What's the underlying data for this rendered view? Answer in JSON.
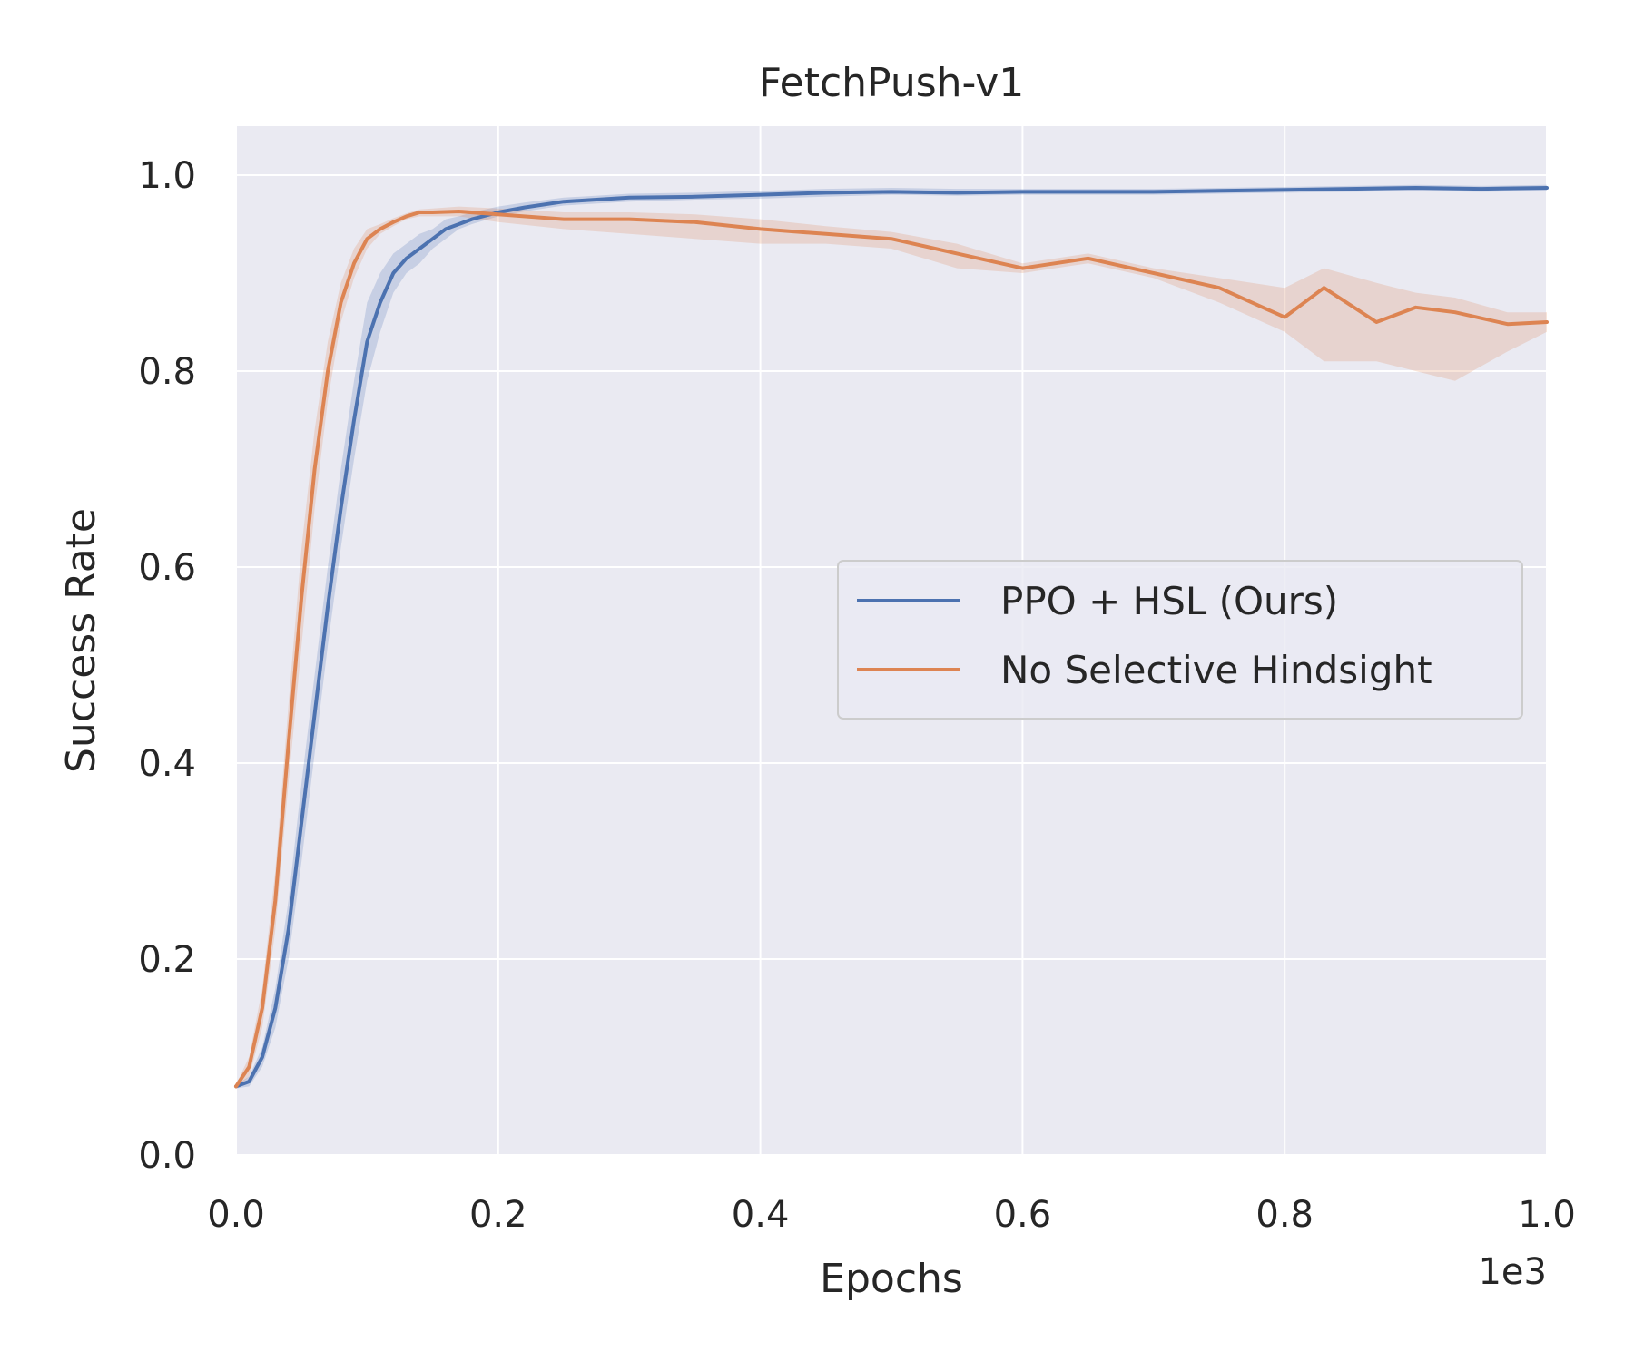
{
  "chart_data": {
    "type": "line",
    "title": "FetchPush-v1",
    "xlabel": "Epochs",
    "ylabel": "Success Rate",
    "x_offset_label": "1e3",
    "xlim": [
      0,
      1.0
    ],
    "ylim": [
      0,
      1.05
    ],
    "xticks": [
      "0.0",
      "0.2",
      "0.4",
      "0.6",
      "0.8",
      "1.0"
    ],
    "yticks": [
      "0.0",
      "0.2",
      "0.4",
      "0.6",
      "0.8",
      "1.0"
    ],
    "grid": true,
    "legend_position": "center-right",
    "background": "#eaeaf2",
    "series": [
      {
        "name": "PPO + HSL (Ours)",
        "color": "#4c72b0",
        "x": [
          0.0,
          0.01,
          0.02,
          0.03,
          0.04,
          0.05,
          0.06,
          0.07,
          0.08,
          0.09,
          0.1,
          0.11,
          0.12,
          0.13,
          0.14,
          0.15,
          0.16,
          0.17,
          0.18,
          0.2,
          0.22,
          0.25,
          0.3,
          0.35,
          0.4,
          0.45,
          0.5,
          0.55,
          0.6,
          0.65,
          0.7,
          0.75,
          0.8,
          0.85,
          0.9,
          0.95,
          1.0
        ],
        "values": [
          0.07,
          0.075,
          0.1,
          0.15,
          0.23,
          0.34,
          0.45,
          0.56,
          0.66,
          0.75,
          0.83,
          0.87,
          0.9,
          0.915,
          0.925,
          0.935,
          0.945,
          0.95,
          0.955,
          0.962,
          0.967,
          0.973,
          0.977,
          0.978,
          0.98,
          0.982,
          0.983,
          0.982,
          0.983,
          0.983,
          0.983,
          0.984,
          0.985,
          0.986,
          0.987,
          0.986,
          0.987
        ],
        "lower": [
          0.068,
          0.07,
          0.09,
          0.13,
          0.2,
          0.3,
          0.41,
          0.52,
          0.62,
          0.71,
          0.79,
          0.84,
          0.88,
          0.9,
          0.91,
          0.925,
          0.935,
          0.945,
          0.95,
          0.958,
          0.963,
          0.969,
          0.973,
          0.975,
          0.976,
          0.978,
          0.98,
          0.979,
          0.98,
          0.98,
          0.98,
          0.981,
          0.982,
          0.983,
          0.984,
          0.983,
          0.984
        ],
        "upper": [
          0.072,
          0.08,
          0.11,
          0.17,
          0.26,
          0.38,
          0.49,
          0.6,
          0.7,
          0.79,
          0.87,
          0.9,
          0.92,
          0.93,
          0.94,
          0.945,
          0.955,
          0.958,
          0.962,
          0.968,
          0.972,
          0.977,
          0.981,
          0.982,
          0.984,
          0.986,
          0.987,
          0.986,
          0.986,
          0.986,
          0.986,
          0.987,
          0.988,
          0.989,
          0.99,
          0.989,
          0.99
        ]
      },
      {
        "name": "No Selective Hindsight",
        "color": "#dd8452",
        "x": [
          0.0,
          0.01,
          0.02,
          0.03,
          0.04,
          0.05,
          0.06,
          0.07,
          0.08,
          0.09,
          0.1,
          0.11,
          0.12,
          0.13,
          0.14,
          0.15,
          0.17,
          0.2,
          0.25,
          0.3,
          0.35,
          0.4,
          0.45,
          0.5,
          0.55,
          0.6,
          0.65,
          0.7,
          0.75,
          0.8,
          0.83,
          0.87,
          0.9,
          0.93,
          0.97,
          1.0
        ],
        "values": [
          0.07,
          0.09,
          0.15,
          0.26,
          0.42,
          0.57,
          0.7,
          0.8,
          0.87,
          0.91,
          0.935,
          0.945,
          0.952,
          0.958,
          0.962,
          0.962,
          0.963,
          0.96,
          0.955,
          0.955,
          0.952,
          0.945,
          0.94,
          0.935,
          0.92,
          0.905,
          0.915,
          0.9,
          0.885,
          0.855,
          0.885,
          0.85,
          0.865,
          0.86,
          0.848,
          0.85
        ],
        "lower": [
          0.068,
          0.08,
          0.13,
          0.23,
          0.38,
          0.52,
          0.66,
          0.77,
          0.85,
          0.895,
          0.925,
          0.94,
          0.948,
          0.955,
          0.958,
          0.958,
          0.958,
          0.952,
          0.945,
          0.94,
          0.935,
          0.93,
          0.93,
          0.925,
          0.905,
          0.9,
          0.91,
          0.895,
          0.87,
          0.84,
          0.81,
          0.81,
          0.8,
          0.79,
          0.82,
          0.84
        ],
        "upper": [
          0.072,
          0.1,
          0.17,
          0.29,
          0.46,
          0.62,
          0.74,
          0.83,
          0.89,
          0.925,
          0.945,
          0.95,
          0.956,
          0.961,
          0.965,
          0.966,
          0.968,
          0.966,
          0.962,
          0.962,
          0.96,
          0.955,
          0.948,
          0.942,
          0.93,
          0.91,
          0.92,
          0.905,
          0.895,
          0.885,
          0.905,
          0.89,
          0.88,
          0.875,
          0.86,
          0.86
        ]
      }
    ]
  }
}
